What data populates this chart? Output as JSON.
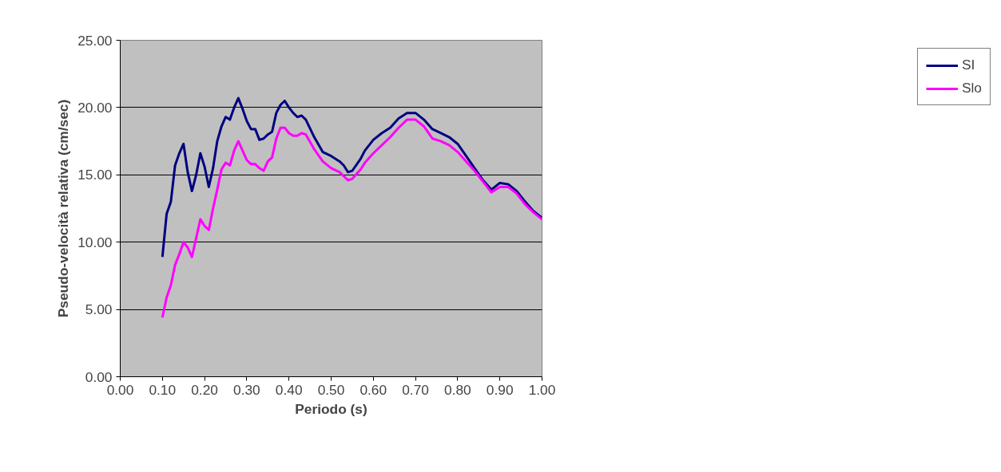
{
  "chart_data": {
    "type": "line",
    "xlabel": "Periodo (s)",
    "ylabel": "Pseudo-velocità relativa (cm/sec)",
    "x": [
      0.1,
      0.11,
      0.12,
      0.13,
      0.14,
      0.15,
      0.16,
      0.17,
      0.18,
      0.19,
      0.2,
      0.21,
      0.22,
      0.23,
      0.24,
      0.25,
      0.26,
      0.27,
      0.28,
      0.29,
      0.3,
      0.31,
      0.32,
      0.33,
      0.34,
      0.35,
      0.36,
      0.37,
      0.38,
      0.39,
      0.4,
      0.41,
      0.42,
      0.43,
      0.44,
      0.46,
      0.48,
      0.5,
      0.52,
      0.53,
      0.54,
      0.55,
      0.57,
      0.58,
      0.6,
      0.62,
      0.64,
      0.66,
      0.68,
      0.7,
      0.72,
      0.74,
      0.76,
      0.78,
      0.8,
      0.82,
      0.84,
      0.86,
      0.88,
      0.9,
      0.92,
      0.94,
      0.96,
      0.98,
      1.0
    ],
    "series": [
      {
        "name": "SI",
        "color": "#000080",
        "values": [
          8.9,
          12.1,
          13.0,
          15.7,
          16.6,
          17.3,
          15.2,
          13.8,
          15.0,
          16.6,
          15.6,
          14.1,
          15.5,
          17.5,
          18.6,
          19.3,
          19.1,
          20.0,
          20.7,
          19.9,
          19.0,
          18.4,
          18.4,
          17.6,
          17.7,
          18.0,
          18.2,
          19.6,
          20.2,
          20.5,
          20.0,
          19.6,
          19.3,
          19.4,
          19.1,
          17.8,
          16.7,
          16.4,
          16.0,
          15.7,
          15.2,
          15.3,
          16.2,
          16.8,
          17.6,
          18.1,
          18.5,
          19.2,
          19.6,
          19.6,
          19.1,
          18.4,
          18.1,
          17.8,
          17.3,
          16.4,
          15.5,
          14.6,
          13.9,
          14.4,
          14.3,
          13.8,
          13.0,
          12.3,
          11.8
        ]
      },
      {
        "name": "Slo",
        "color": "#ff00ff",
        "values": [
          4.4,
          5.9,
          6.8,
          8.3,
          9.1,
          10.0,
          9.6,
          8.9,
          10.3,
          11.7,
          11.2,
          10.9,
          12.5,
          13.9,
          15.4,
          15.9,
          15.7,
          16.8,
          17.5,
          16.8,
          16.1,
          15.8,
          15.8,
          15.5,
          15.3,
          16.0,
          16.3,
          17.7,
          18.5,
          18.5,
          18.1,
          17.9,
          17.9,
          18.1,
          18.0,
          16.9,
          16.0,
          15.5,
          15.2,
          14.9,
          14.6,
          14.7,
          15.4,
          15.9,
          16.6,
          17.2,
          17.8,
          18.5,
          19.1,
          19.1,
          18.6,
          17.7,
          17.5,
          17.2,
          16.7,
          16.0,
          15.3,
          14.5,
          13.7,
          14.1,
          14.1,
          13.6,
          12.8,
          12.2,
          11.7
        ]
      }
    ],
    "xlim": [
      0,
      1
    ],
    "ylim": [
      0,
      25
    ],
    "xticks": [
      {
        "value": 0,
        "label": "0.00"
      },
      {
        "value": 0.1,
        "label": "0.10"
      },
      {
        "value": 0.2,
        "label": "0.20"
      },
      {
        "value": 0.3,
        "label": "0.30"
      },
      {
        "value": 0.4,
        "label": "0.40"
      },
      {
        "value": 0.5,
        "label": "0.50"
      },
      {
        "value": 0.6,
        "label": "0.60"
      },
      {
        "value": 0.7,
        "label": "0.70"
      },
      {
        "value": 0.8,
        "label": "0.80"
      },
      {
        "value": 0.9,
        "label": "0.90"
      },
      {
        "value": 1,
        "label": "1.00"
      }
    ],
    "yticks": [
      {
        "value": 0,
        "label": "0.00"
      },
      {
        "value": 5,
        "label": "5.00"
      },
      {
        "value": 10,
        "label": "10.00"
      },
      {
        "value": 15,
        "label": "15.00"
      },
      {
        "value": 20,
        "label": "20.00"
      },
      {
        "value": 25,
        "label": "25.00"
      }
    ],
    "grid": "y",
    "legend": "right",
    "marker": "none",
    "line_style": "solid"
  }
}
